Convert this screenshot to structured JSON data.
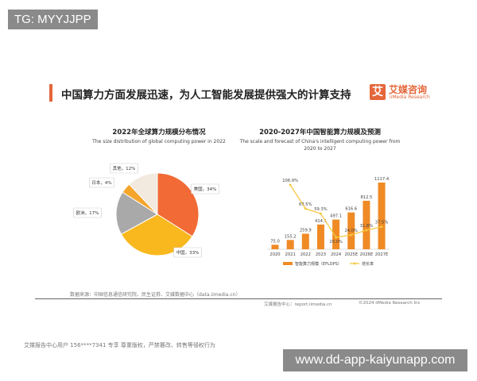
{
  "watermark_top": "TG: MYYJJPP",
  "headline": "中国算力方面发展迅速，为人工智能发展提供强大的计算支持",
  "logo": {
    "mark": "艾",
    "cn": "艾媒咨询",
    "en": "iiMedia Research"
  },
  "chart_data": [
    {
      "type": "pie",
      "title": "2022年全球算力规模分布情况",
      "subtitle": "The size distribution of global computing power in 2022",
      "slices": [
        {
          "label": "美国",
          "value": 34,
          "text": "美国，34%",
          "color": "#f26a35"
        },
        {
          "label": "中国",
          "value": 33,
          "text": "中国，33%",
          "color": "#f9b81e"
        },
        {
          "label": "欧洲",
          "value": 17,
          "text": "欧洲，17%",
          "color": "#a9a9a9"
        },
        {
          "label": "日本",
          "value": 4,
          "text": "日本，4%",
          "color": "#f4a52a"
        },
        {
          "label": "其他",
          "value": 12,
          "text": "其他，12%",
          "color": "#f2e9df"
        }
      ]
    },
    {
      "type": "bar",
      "title": "2020-2027年中国智能算力规模及预测",
      "subtitle": "The scale and forecast of China's intelligent computing power from 2020 to 2027",
      "categories": [
        "2020",
        "2021",
        "2022",
        "2023",
        "2024",
        "2025E",
        "2026E",
        "2027E"
      ],
      "series": [
        {
          "name": "智能算力规模（EFLOPS）",
          "type": "bar",
          "color": "#ef8a25",
          "values": [
            75.0,
            155.2,
            259.9,
            414.1,
            497.1,
            616.6,
            812.5,
            1117.4
          ],
          "labels": [
            "75.0",
            "155.2",
            "259.9",
            "414.1",
            "497.1",
            "616.6",
            "812.5",
            "1117.4"
          ]
        },
        {
          "name": "增长率",
          "type": "line",
          "color": "#f5c842",
          "values": [
            null,
            106.9,
            67.5,
            59.3,
            20.0,
            24.0,
            31.8,
            37.5
          ],
          "labels": [
            "",
            "106.9%",
            "67.5%",
            "59.3%",
            "20.0%",
            "24.0%",
            "31.8%",
            "37.5%"
          ]
        }
      ],
      "legend": "bottom"
    }
  ],
  "footer": {
    "source": "数据来源：中国信息通信研究院、民生证券、艾媒数据中心（data.iimedia.cn）",
    "report": "艾媒报告中心：report.iimedia.cn",
    "copyright": "©2024 iiMedia Research Inc",
    "user_note": "艾媒报告中心用户 156****7341 专享 尊重版权，严禁篡改、转售等侵权行为"
  },
  "watermark_bottom": "www.dd-app-kaiyunapp.com"
}
